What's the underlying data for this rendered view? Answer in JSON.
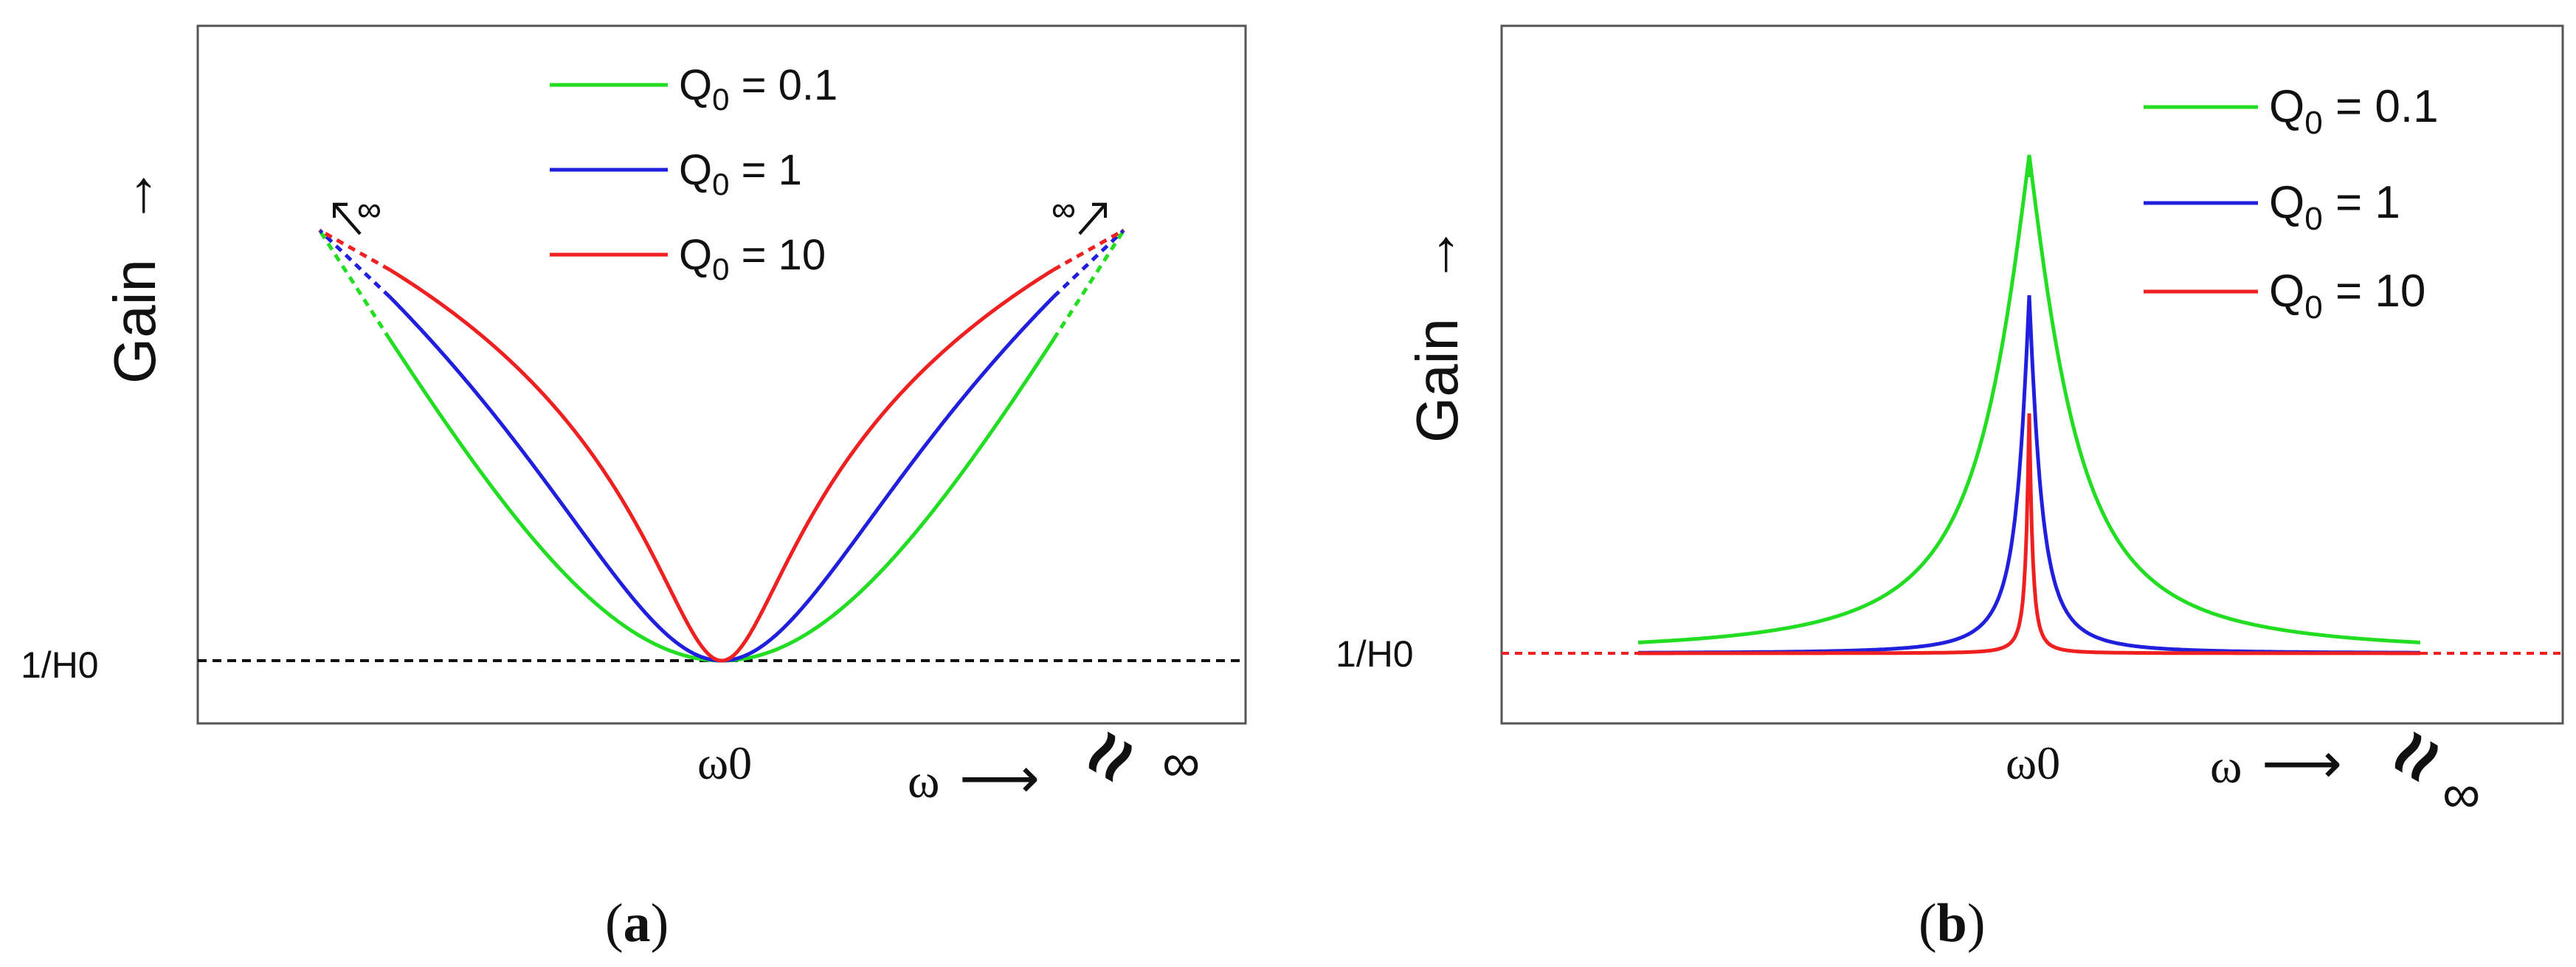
{
  "chart_data": [
    {
      "panel": "a",
      "type": "line",
      "panel_label": "(a)",
      "panel_letter": "a",
      "ylabel": "Gain",
      "ylabel_arrow": "→",
      "xlabel": "ω",
      "xlabel_arrow": "⟶",
      "center_tick": "ω0",
      "baseline_label": "1/H0",
      "right_end_symbol": "≈",
      "right_end_label": "∞",
      "infinity_marker": "∞",
      "legend_position": "top-center",
      "grid": false,
      "series": [
        {
          "name": "Q0 = 0.1",
          "name_base": "Q",
          "name_sub": "0",
          "name_rest": " = 0.1",
          "color": "#22dd22",
          "Q": 0.1
        },
        {
          "name": "Q0 = 1",
          "name_base": "Q",
          "name_sub": "0",
          "name_rest": " = 1",
          "color": "#1f1fdd",
          "Q": 1
        },
        {
          "name": "Q0 = 10",
          "name_base": "Q",
          "name_sub": "0",
          "name_rest": " = 10",
          "color": "#ee2020",
          "Q": 10
        }
      ]
    },
    {
      "panel": "b",
      "type": "line",
      "panel_label": "(b)",
      "panel_letter": "b",
      "ylabel": "Gain",
      "ylabel_arrow": "→",
      "xlabel": "ω",
      "xlabel_arrow": "⟶",
      "center_tick": "ω0",
      "baseline_label": "1/H0",
      "right_end_symbol": "≈",
      "right_end_label": "∞",
      "legend_position": "top-right",
      "grid": false,
      "series": [
        {
          "name": "Q0 = 0.1",
          "name_base": "Q",
          "name_sub": "0",
          "name_rest": " = 0.1",
          "color": "#22dd22",
          "Q": 0.1
        },
        {
          "name": "Q0 = 1",
          "name_base": "Q",
          "name_sub": "0",
          "name_rest": " = 1",
          "color": "#1f1fdd",
          "Q": 1
        },
        {
          "name": "Q0 = 10",
          "name_base": "Q",
          "name_sub": "0",
          "name_rest": " = 10",
          "color": "#ee2020",
          "Q": 10
        }
      ]
    }
  ]
}
